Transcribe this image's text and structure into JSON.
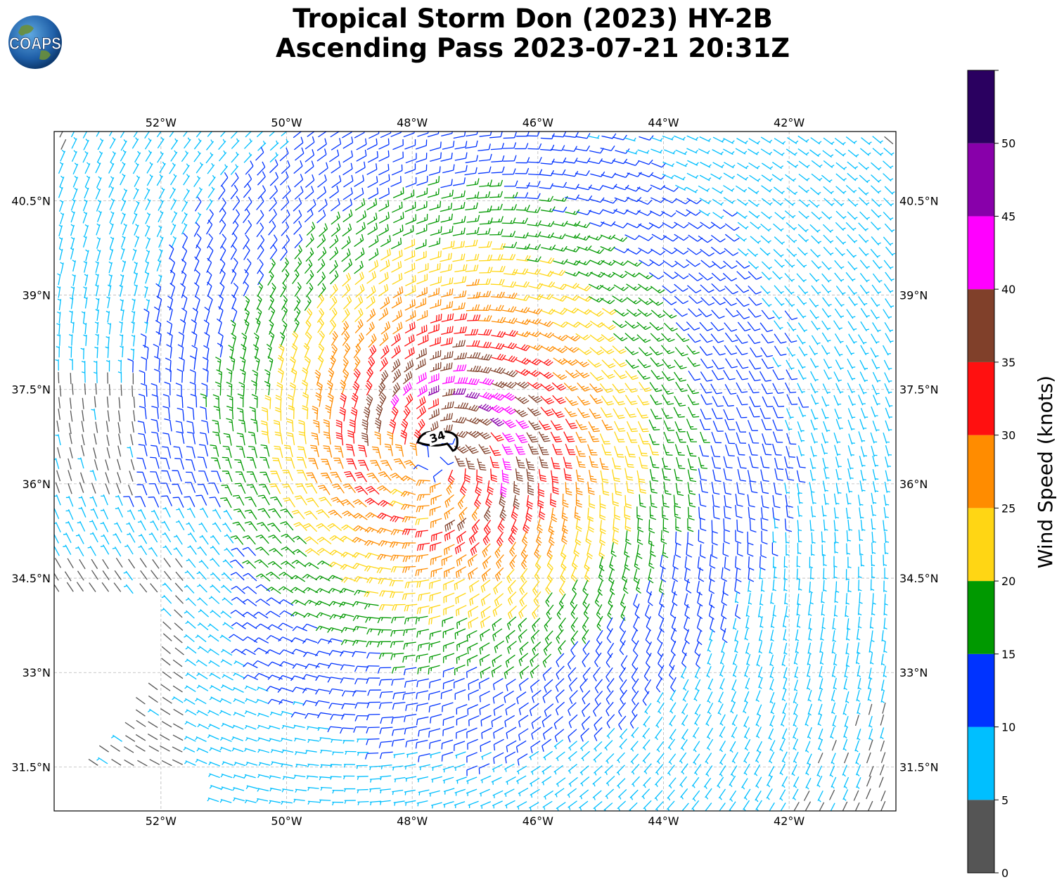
{
  "title": {
    "line1": "Tropical Storm Don (2023) HY-2B",
    "line2": "Ascending Pass 2023-07-21 20:31Z"
  },
  "logo": {
    "text": "COAPS",
    "icon": "globe-logo-icon"
  },
  "map": {
    "lon_range": [
      -53.7,
      -40.3
    ],
    "lat_range": [
      30.8,
      41.6
    ],
    "lon_ticks": [
      {
        "value": -52,
        "label": "52°W"
      },
      {
        "value": -50,
        "label": "50°W"
      },
      {
        "value": -48,
        "label": "48°W"
      },
      {
        "value": -46,
        "label": "46°W"
      },
      {
        "value": -44,
        "label": "44°W"
      },
      {
        "value": -42,
        "label": "42°W"
      }
    ],
    "lat_ticks": [
      {
        "value": 31.5,
        "label": "31.5°N"
      },
      {
        "value": 33,
        "label": "33°N"
      },
      {
        "value": 34.5,
        "label": "34.5°N"
      },
      {
        "value": 36,
        "label": "36°N"
      },
      {
        "value": 37.5,
        "label": "37.5°N"
      },
      {
        "value": 39,
        "label": "39°N"
      },
      {
        "value": 40.5,
        "label": "40.5°N"
      }
    ],
    "gridlines": "dashed",
    "storm_center": {
      "lon": -47.6,
      "lat": 36.4
    },
    "contour": {
      "lon": -47.6,
      "lat": 36.75,
      "label": "34"
    }
  },
  "colorbar": {
    "label": "Wind Speed (knots)",
    "ticks": [
      "0",
      "5",
      "10",
      "15",
      "20",
      "25",
      "30",
      "35",
      "40",
      "45",
      "50"
    ],
    "bins": [
      {
        "min": 0,
        "max": 5,
        "color": "#555555"
      },
      {
        "min": 5,
        "max": 10,
        "color": "#00bfff"
      },
      {
        "min": 10,
        "max": 15,
        "color": "#0033ff"
      },
      {
        "min": 15,
        "max": 20,
        "color": "#009900"
      },
      {
        "min": 20,
        "max": 25,
        "color": "#ffd614"
      },
      {
        "min": 25,
        "max": 30,
        "color": "#ff8c00"
      },
      {
        "min": 30,
        "max": 35,
        "color": "#ff1010"
      },
      {
        "min": 35,
        "max": 40,
        "color": "#80402a"
      },
      {
        "min": 40,
        "max": 45,
        "color": "#ff00ff"
      },
      {
        "min": 45,
        "max": 50,
        "color": "#8800aa"
      },
      {
        "min": 50,
        "max": 55,
        "color": "#2a0060"
      }
    ],
    "max": 55
  }
}
